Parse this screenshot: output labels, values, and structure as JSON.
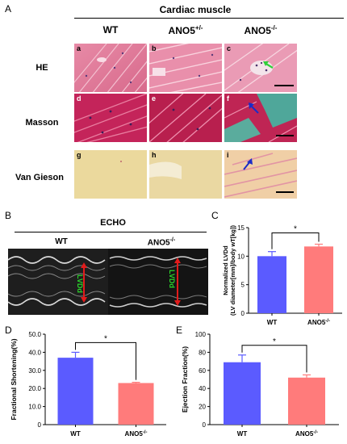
{
  "panelA": {
    "letter": "A",
    "title": "Cardiac muscle",
    "columns": [
      "WT",
      "ANO5+/-",
      "ANO5-/-"
    ],
    "rows": [
      "HE",
      "Masson",
      "Van Gieson"
    ],
    "tiles": [
      {
        "label": "a",
        "stain": "he"
      },
      {
        "label": "b",
        "stain": "he"
      },
      {
        "label": "c",
        "stain": "he"
      },
      {
        "label": "d",
        "stain": "masson"
      },
      {
        "label": "e",
        "stain": "masson"
      },
      {
        "label": "f",
        "stain": "masson"
      },
      {
        "label": "g",
        "stain": "vg"
      },
      {
        "label": "h",
        "stain": "vg"
      },
      {
        "label": "i",
        "stain": "vg"
      }
    ]
  },
  "panelB": {
    "letter": "B",
    "title": "ECHO",
    "left_label": "WT",
    "right_label": "ANO5-/-",
    "marker_label": "LVDd"
  },
  "panelC": {
    "letter": "C"
  },
  "panelD": {
    "letter": "D"
  },
  "panelE": {
    "letter": "E"
  },
  "chart_data": [
    {
      "type": "bar",
      "panel": "C",
      "categories": [
        "WT",
        "ANO5-/-"
      ],
      "values": [
        10.0,
        11.7
      ],
      "errors": [
        0.8,
        0.4
      ],
      "ylabel": "Normalized LVDd (LV diameter[mm]/body wT[kg])",
      "ylim": [
        0,
        15
      ],
      "yticks": [
        0,
        5,
        10,
        15
      ],
      "significance": "*",
      "colors": [
        "#5b5bff",
        "#ff7b7b"
      ]
    },
    {
      "type": "bar",
      "panel": "D",
      "categories": [
        "WT",
        "ANO5-/-"
      ],
      "values": [
        37.0,
        23.0
      ],
      "errors": [
        3.0,
        0.4
      ],
      "ylabel": "Fractional Shortening(%)",
      "ylim": [
        0,
        50
      ],
      "yticks": [
        "0",
        "10.0",
        "20.0",
        "30.0",
        "40.0",
        "50.0"
      ],
      "significance": "*",
      "colors": [
        "#5b5bff",
        "#ff7b7b"
      ]
    },
    {
      "type": "bar",
      "panel": "E",
      "categories": [
        "WT",
        "ANO5-/-"
      ],
      "values": [
        69.0,
        52.0
      ],
      "errors": [
        8.0,
        3.0
      ],
      "ylabel": "Ejection Fraction(%)",
      "ylim": [
        0,
        100
      ],
      "yticks": [
        0,
        20,
        40,
        60,
        80,
        100
      ],
      "significance": "*",
      "colors": [
        "#5b5bff",
        "#ff7b7b"
      ]
    }
  ]
}
